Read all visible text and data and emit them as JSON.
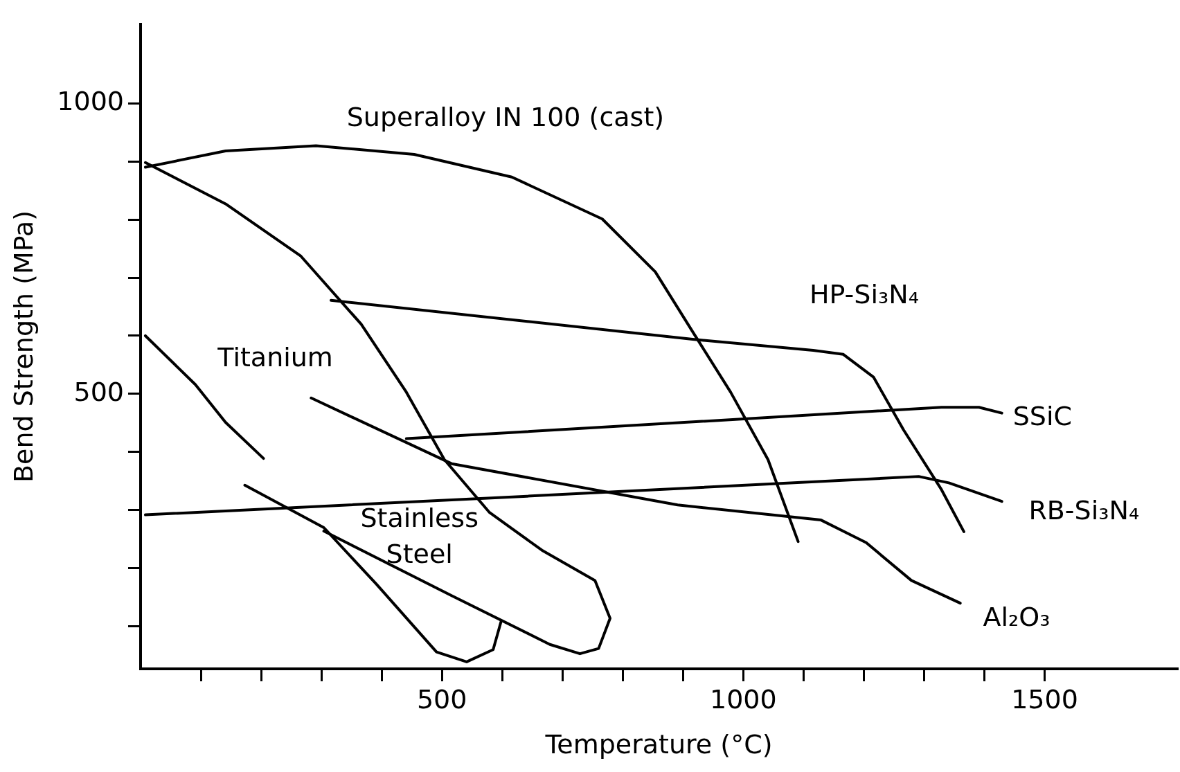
{
  "chart_data": {
    "type": "line",
    "xlabel": "Temperature (°C)",
    "ylabel": "Bend Strength (MPa)",
    "xlim": [
      0,
      1720
    ],
    "ylim": [
      27,
      1136
    ],
    "xticks": [
      {
        "value": 100,
        "label": null
      },
      {
        "value": 200,
        "label": null
      },
      {
        "value": 300,
        "label": null
      },
      {
        "value": 400,
        "label": null
      },
      500,
      {
        "value": 600,
        "label": null
      },
      {
        "value": 700,
        "label": null
      },
      {
        "value": 800,
        "label": null
      },
      {
        "value": 900,
        "label": null
      },
      1000,
      {
        "value": 1100,
        "label": null
      },
      {
        "value": 1200,
        "label": null
      },
      {
        "value": 1300,
        "label": null
      },
      {
        "value": 1400,
        "label": null
      },
      1500
    ],
    "yticks": [
      {
        "value": 100,
        "label": null
      },
      {
        "value": 200,
        "label": null
      },
      {
        "value": 300,
        "label": null
      },
      {
        "value": 400,
        "label": null
      },
      500,
      {
        "value": 600,
        "label": null
      },
      {
        "value": 700,
        "label": null
      },
      {
        "value": 800,
        "label": null
      },
      {
        "value": 900,
        "label": null
      },
      1000
    ],
    "grid": false,
    "legend": false,
    "marker": "none",
    "line_style": "solid",
    "series": [
      {
        "name": "Superalloy IN 100 (cast)",
        "color": "#000000",
        "x": [
          8,
          141,
          291,
          454,
          616,
          766,
          854,
          916,
          979,
          1041,
          1091
        ],
        "values": [
          890,
          918,
          927,
          912,
          873,
          801,
          710,
          607,
          503,
          387,
          246
        ]
      },
      {
        "name": "Stainless\nSteel",
        "color": "#000000",
        "x": [
          8,
          141,
          266,
          366,
          441,
          504,
          579,
          666,
          754,
          779,
          760,
          729,
          679,
          516,
          304
        ],
        "values": [
          898,
          827,
          737,
          620,
          503,
          387,
          296,
          231,
          179,
          114,
          62,
          53,
          69,
          153,
          264
        ]
      },
      {
        "name": "Titanium",
        "color": "#000000",
        "x": [
          8,
          91,
          141,
          204,
          190,
          173,
          304,
          391,
          491,
          541,
          585,
          598
        ],
        "values": [
          600,
          516,
          451,
          389,
          null,
          343,
          270,
          173,
          56,
          39,
          60,
          108
        ]
      },
      {
        "name": "HP-Si₃N₄",
        "color": "#000000",
        "x": [
          316,
          916,
          1116,
          1166,
          1216,
          1266,
          1329,
          1366
        ],
        "values": [
          661,
          594,
          575,
          568,
          529,
          438,
          335,
          263
        ]
      },
      {
        "name": "SSiC",
        "color": "#000000",
        "x": [
          441,
          1329,
          1391,
          1429
        ],
        "values": [
          423,
          477,
          477,
          467
        ]
      },
      {
        "name": "RB-Si₃N₄",
        "color": "#000000",
        "x": [
          8,
          641,
          1291,
          1341,
          1429
        ],
        "values": [
          292,
          324,
          358,
          347,
          315
        ]
      },
      {
        "name": "Al₂O₃",
        "color": "#000000",
        "x": [
          283,
          516,
          891,
          1129,
          1204,
          1279,
          1360
        ],
        "values": [
          493,
          380,
          309,
          283,
          244,
          179,
          140
        ]
      }
    ]
  }
}
